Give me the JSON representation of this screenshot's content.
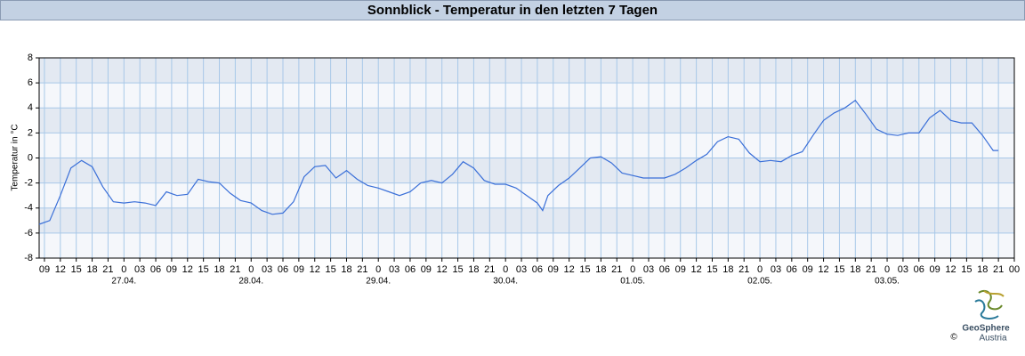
{
  "chart_data": {
    "type": "line",
    "title": "Sonnblick - Temperatur in den letzten 7 Tagen",
    "ylabel": "Temperatur in °C",
    "x": [
      8,
      10,
      12,
      14,
      16,
      18,
      20,
      22,
      24,
      26,
      28,
      30,
      32,
      34,
      36,
      38,
      40,
      42,
      44,
      46,
      48,
      50,
      52,
      54,
      56,
      58,
      60,
      62,
      64,
      66,
      68,
      70,
      72,
      74,
      76,
      78,
      80,
      82,
      84,
      86,
      88,
      90,
      92,
      94,
      96,
      98,
      100,
      102,
      103,
      104,
      106,
      108,
      110,
      112,
      114,
      116,
      118,
      120,
      122,
      124,
      126,
      128,
      130,
      132,
      134,
      136,
      138,
      140,
      142,
      144,
      146,
      148,
      150,
      152,
      154,
      156,
      158,
      160,
      162,
      164,
      166,
      168,
      170,
      172,
      174,
      176,
      178,
      180,
      182,
      184,
      186,
      188,
      189
    ],
    "series": [
      {
        "color": "#3a6fd8",
        "values": [
          -5.3,
          -5.0,
          -3.0,
          -0.8,
          -0.2,
          -0.7,
          -2.3,
          -3.5,
          -3.6,
          -3.5,
          -3.6,
          -3.8,
          -2.7,
          -3.0,
          -2.9,
          -1.7,
          -1.9,
          -2.0,
          -2.8,
          -3.4,
          -3.6,
          -4.2,
          -4.5,
          -4.4,
          -3.5,
          -1.5,
          -0.7,
          -0.6,
          -1.6,
          -1.0,
          -1.7,
          -2.2,
          -2.4,
          -2.7,
          -3.0,
          -2.7,
          -2.0,
          -1.8,
          -2.0,
          -1.3,
          -0.3,
          -0.8,
          -1.8,
          -2.1,
          -2.1,
          -2.4,
          -3.0,
          -3.6,
          -4.2,
          -3.0,
          -2.2,
          -1.6,
          -0.8,
          0.0,
          0.1,
          -0.4,
          -1.2,
          -1.4,
          -1.6,
          -1.6,
          -1.6,
          -1.3,
          -0.8,
          -0.2,
          0.3,
          1.3,
          1.7,
          1.5,
          0.4,
          -0.3,
          -0.2,
          -0.3,
          0.2,
          0.5,
          1.8,
          3.0,
          3.6,
          4.0,
          4.6,
          3.5,
          2.3,
          1.9,
          1.8,
          2.0,
          2.0,
          3.2,
          3.8,
          3.0,
          2.8,
          2.8,
          1.8,
          0.6,
          0.6
        ]
      }
    ],
    "xlim": [
      8,
      192
    ],
    "ylim": [
      -8,
      8
    ],
    "yticks": [
      -8,
      -6,
      -4,
      -2,
      0,
      2,
      4,
      6,
      8
    ],
    "xticks": [
      {
        "value": 9,
        "label": "09"
      },
      {
        "value": 12,
        "label": "12"
      },
      {
        "value": 15,
        "label": "15"
      },
      {
        "value": 18,
        "label": "18"
      },
      {
        "value": 21,
        "label": "21"
      },
      {
        "value": 24,
        "label": "0"
      },
      {
        "value": 27,
        "label": "03"
      },
      {
        "value": 30,
        "label": "06"
      },
      {
        "value": 33,
        "label": "09"
      },
      {
        "value": 36,
        "label": "12"
      },
      {
        "value": 39,
        "label": "15"
      },
      {
        "value": 42,
        "label": "18"
      },
      {
        "value": 45,
        "label": "21"
      },
      {
        "value": 48,
        "label": "0"
      },
      {
        "value": 51,
        "label": "03"
      },
      {
        "value": 54,
        "label": "06"
      },
      {
        "value": 57,
        "label": "09"
      },
      {
        "value": 60,
        "label": "12"
      },
      {
        "value": 63,
        "label": "15"
      },
      {
        "value": 66,
        "label": "18"
      },
      {
        "value": 69,
        "label": "21"
      },
      {
        "value": 72,
        "label": "0"
      },
      {
        "value": 75,
        "label": "03"
      },
      {
        "value": 78,
        "label": "06"
      },
      {
        "value": 81,
        "label": "09"
      },
      {
        "value": 84,
        "label": "12"
      },
      {
        "value": 87,
        "label": "15"
      },
      {
        "value": 90,
        "label": "18"
      },
      {
        "value": 93,
        "label": "21"
      },
      {
        "value": 96,
        "label": "0"
      },
      {
        "value": 99,
        "label": "03"
      },
      {
        "value": 102,
        "label": "06"
      },
      {
        "value": 105,
        "label": "09"
      },
      {
        "value": 108,
        "label": "12"
      },
      {
        "value": 111,
        "label": "15"
      },
      {
        "value": 114,
        "label": "18"
      },
      {
        "value": 117,
        "label": "21"
      },
      {
        "value": 120,
        "label": "0"
      },
      {
        "value": 123,
        "label": "03"
      },
      {
        "value": 126,
        "label": "06"
      },
      {
        "value": 129,
        "label": "09"
      },
      {
        "value": 132,
        "label": "12"
      },
      {
        "value": 135,
        "label": "15"
      },
      {
        "value": 138,
        "label": "18"
      },
      {
        "value": 141,
        "label": "21"
      },
      {
        "value": 144,
        "label": "0"
      },
      {
        "value": 147,
        "label": "03"
      },
      {
        "value": 150,
        "label": "06"
      },
      {
        "value": 153,
        "label": "09"
      },
      {
        "value": 156,
        "label": "12"
      },
      {
        "value": 159,
        "label": "15"
      },
      {
        "value": 162,
        "label": "18"
      },
      {
        "value": 165,
        "label": "21"
      },
      {
        "value": 168,
        "label": "0"
      },
      {
        "value": 171,
        "label": "03"
      },
      {
        "value": 174,
        "label": "06"
      },
      {
        "value": 177,
        "label": "09"
      },
      {
        "value": 180,
        "label": "12"
      },
      {
        "value": 183,
        "label": "15"
      },
      {
        "value": 186,
        "label": "18"
      },
      {
        "value": 189,
        "label": "21"
      },
      {
        "value": 192,
        "label": "00"
      }
    ],
    "day_labels": [
      {
        "value": 24,
        "label": "27.04."
      },
      {
        "value": 48,
        "label": "28.04."
      },
      {
        "value": 72,
        "label": "29.04."
      },
      {
        "value": 96,
        "label": "30.04."
      },
      {
        "value": 120,
        "label": "01.05."
      },
      {
        "value": 144,
        "label": "02.05."
      },
      {
        "value": 168,
        "label": "03.05."
      }
    ],
    "grid": true
  },
  "logo": {
    "name": "GeoSphere",
    "sub": "Austria",
    "copyright": "©"
  }
}
